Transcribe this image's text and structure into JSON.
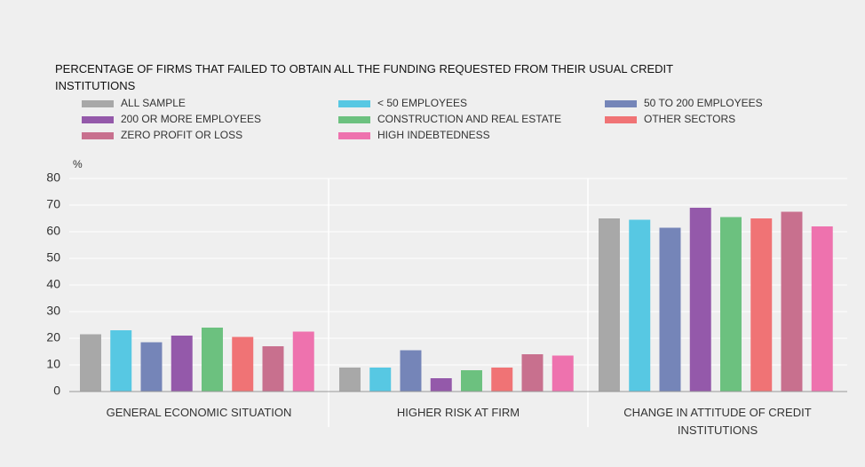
{
  "chart_data": {
    "type": "bar",
    "title": "PERCENTAGE OF FIRMS THAT FAILED TO OBTAIN ALL THE FUNDING REQUESTED FROM THEIR USUAL CREDIT INSTITUTIONS",
    "y_label": "%",
    "categories": [
      "GENERAL ECONOMIC SITUATION",
      "HIGHER RISK AT FIRM",
      "CHANGE IN ATTITUDE OF CREDIT INSTITUTIONS"
    ],
    "series": [
      {
        "name": "ALL SAMPLE",
        "color": "#a8a8a8",
        "values": [
          21.5,
          9,
          65
        ]
      },
      {
        "name": "< 50 EMPLOYEES",
        "color": "#57c8e3",
        "values": [
          23,
          9,
          64.5
        ]
      },
      {
        "name": "50 TO 200 EMPLOYEES",
        "color": "#7585b8",
        "values": [
          18.5,
          15.5,
          61.5
        ]
      },
      {
        "name": "200 OR MORE EMPLOYEES",
        "color": "#9459aa",
        "values": [
          21,
          5,
          69
        ]
      },
      {
        "name": "CONSTRUCTION AND REAL ESTATE",
        "color": "#6cc17f",
        "values": [
          24,
          8,
          65.5
        ]
      },
      {
        "name": "OTHER SECTORS",
        "color": "#f07375",
        "values": [
          20.5,
          9,
          65
        ]
      },
      {
        "name": "ZERO PROFIT OR LOSS",
        "color": "#c8708e",
        "values": [
          17,
          14,
          67.5
        ]
      },
      {
        "name": "HIGH INDEBTEDNESS",
        "color": "#ee72ae",
        "values": [
          22.5,
          13.5,
          62
        ]
      }
    ],
    "ylim": [
      0,
      80
    ],
    "yticks": [
      0,
      10,
      20,
      30,
      40,
      50,
      60,
      70,
      80
    ],
    "grid": true
  }
}
